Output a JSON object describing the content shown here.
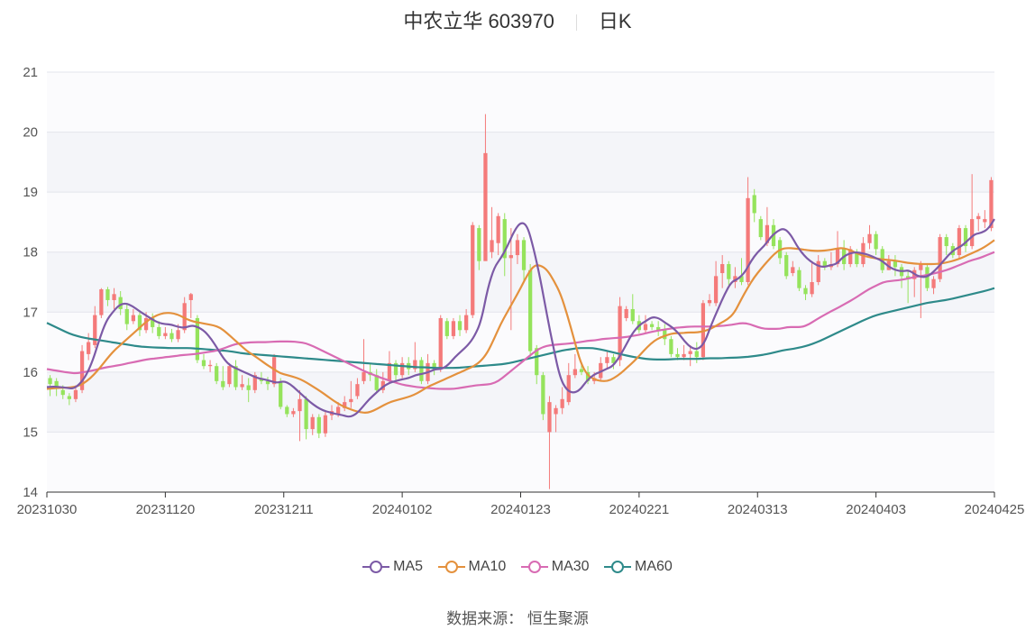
{
  "title": {
    "name": "中农立华 603970",
    "period": "日K"
  },
  "source": "数据来源： 恒生聚源",
  "colors": {
    "up": "#f47a7a",
    "down": "#95e35c",
    "MA5": "#7c5aa6",
    "MA10": "#e4913d",
    "MA30": "#d86bb3",
    "MA60": "#2e8a8a"
  },
  "chart_data": {
    "type": "candlestick",
    "ylim": [
      14,
      21
    ],
    "y_ticks": [
      "14",
      "15",
      "16",
      "17",
      "18",
      "19",
      "20",
      "21"
    ],
    "x_tick_labels": [
      "20231030",
      "20231120",
      "20231211",
      "20240102",
      "20240123",
      "20240221",
      "20240313",
      "20240403",
      "20240425"
    ],
    "legend": [
      "MA5",
      "MA10",
      "MA30",
      "MA60"
    ],
    "candles": [
      [
        15.9,
        15.8,
        15.95,
        15.6
      ],
      [
        15.85,
        15.72,
        15.9,
        15.6
      ],
      [
        15.7,
        15.62,
        15.78,
        15.55
      ],
      [
        15.6,
        15.55,
        15.65,
        15.45
      ],
      [
        15.55,
        15.7,
        15.78,
        15.5
      ],
      [
        15.7,
        16.35,
        16.45,
        15.65
      ],
      [
        16.3,
        16.5,
        16.65,
        16.2
      ],
      [
        16.45,
        16.95,
        17.1,
        16.4
      ],
      [
        16.95,
        17.38,
        17.4,
        16.9
      ],
      [
        17.38,
        17.2,
        17.42,
        17.1
      ],
      [
        17.2,
        17.3,
        17.4,
        17.05
      ],
      [
        17.25,
        17.05,
        17.35,
        16.95
      ],
      [
        17.05,
        16.8,
        17.15,
        16.7
      ],
      [
        16.85,
        16.95,
        17.05,
        16.8
      ],
      [
        16.95,
        16.7,
        17.0,
        16.6
      ],
      [
        16.7,
        16.9,
        17.0,
        16.65
      ],
      [
        16.9,
        16.75,
        16.98,
        16.65
      ],
      [
        16.75,
        16.6,
        16.85,
        16.55
      ],
      [
        16.6,
        16.65,
        16.75,
        16.55
      ],
      [
        16.65,
        16.55,
        16.72,
        16.5
      ],
      [
        16.55,
        16.7,
        16.8,
        16.5
      ],
      [
        16.7,
        17.15,
        17.25,
        16.65
      ],
      [
        17.2,
        17.3,
        17.32,
        16.9
      ],
      [
        16.9,
        16.2,
        16.95,
        16.15
      ],
      [
        16.2,
        16.1,
        16.3,
        16.05
      ],
      [
        16.1,
        16.12,
        16.2,
        16.0
      ],
      [
        16.1,
        15.85,
        16.15,
        15.8
      ],
      [
        15.85,
        15.75,
        16.1,
        15.7
      ],
      [
        15.8,
        16.1,
        16.15,
        15.75
      ],
      [
        16.1,
        15.75,
        16.2,
        15.7
      ],
      [
        15.75,
        15.8,
        15.95,
        15.7
      ],
      [
        15.78,
        15.7,
        15.9,
        15.5
      ],
      [
        15.7,
        15.95,
        16.0,
        15.65
      ],
      [
        15.9,
        15.85,
        16.0,
        15.8
      ],
      [
        15.85,
        15.8,
        15.92,
        15.7
      ],
      [
        15.8,
        16.25,
        16.3,
        15.75
      ],
      [
        15.85,
        15.42,
        15.9,
        15.38
      ],
      [
        15.42,
        15.3,
        15.45,
        15.25
      ],
      [
        15.3,
        15.35,
        15.4,
        15.25
      ],
      [
        15.35,
        15.55,
        15.7,
        14.85
      ],
      [
        15.55,
        15.05,
        15.6,
        14.88
      ],
      [
        15.05,
        15.25,
        15.3,
        14.95
      ],
      [
        15.25,
        14.98,
        15.3,
        14.9
      ],
      [
        14.98,
        15.28,
        15.35,
        14.92
      ],
      [
        15.28,
        15.35,
        15.45,
        15.2
      ],
      [
        15.3,
        15.42,
        15.5,
        15.25
      ],
      [
        15.4,
        15.5,
        15.6,
        15.35
      ],
      [
        15.5,
        15.55,
        15.85,
        15.4
      ],
      [
        15.6,
        15.8,
        15.9,
        15.55
      ],
      [
        15.85,
        16.0,
        16.55,
        15.8
      ],
      [
        16.0,
        15.95,
        16.15,
        15.85
      ],
      [
        15.95,
        15.7,
        16.05,
        15.65
      ],
      [
        15.7,
        15.85,
        16.0,
        15.65
      ],
      [
        15.85,
        16.15,
        16.35,
        15.8
      ],
      [
        16.15,
        15.95,
        16.2,
        15.85
      ],
      [
        15.95,
        16.15,
        16.25,
        15.9
      ],
      [
        16.15,
        16.05,
        16.25,
        15.95
      ],
      [
        16.05,
        16.2,
        16.5,
        16.0
      ],
      [
        16.2,
        15.85,
        16.25,
        15.8
      ],
      [
        15.85,
        16.15,
        16.3,
        15.8
      ],
      [
        16.15,
        16.05,
        16.2,
        15.95
      ],
      [
        16.05,
        16.9,
        16.95,
        16.0
      ],
      [
        16.85,
        16.6,
        16.9,
        16.55
      ],
      [
        16.6,
        16.85,
        16.9,
        16.55
      ],
      [
        16.85,
        16.7,
        16.95,
        16.6
      ],
      [
        16.7,
        16.95,
        17.05,
        16.65
      ],
      [
        16.95,
        18.45,
        18.5,
        16.9
      ],
      [
        18.4,
        17.85,
        18.45,
        17.7
      ],
      [
        17.85,
        19.65,
        20.3,
        18.0
      ],
      [
        18.0,
        18.2,
        18.75,
        17.9
      ],
      [
        18.15,
        18.6,
        18.65,
        17.95
      ],
      [
        18.55,
        17.9,
        18.65,
        17.6
      ],
      [
        17.9,
        17.95,
        18.4,
        16.7
      ],
      [
        17.95,
        18.2,
        18.3,
        17.8
      ],
      [
        18.2,
        17.7,
        18.25,
        17.5
      ],
      [
        17.7,
        16.35,
        17.8,
        16.25
      ],
      [
        16.4,
        15.95,
        16.45,
        15.8
      ],
      [
        15.95,
        15.3,
        16.0,
        15.2
      ],
      [
        15.0,
        15.5,
        15.6,
        14.05
      ],
      [
        15.3,
        15.4,
        15.45,
        15.0
      ],
      [
        15.4,
        15.55,
        15.75,
        15.3
      ],
      [
        15.5,
        15.95,
        16.15,
        15.45
      ],
      [
        15.95,
        16.05,
        16.3,
        15.9
      ],
      [
        16.05,
        16.0,
        16.15,
        15.95
      ],
      [
        16.0,
        15.85,
        16.1,
        15.8
      ],
      [
        15.85,
        15.9,
        16.0,
        15.8
      ],
      [
        15.9,
        16.15,
        16.25,
        15.85
      ],
      [
        16.15,
        16.25,
        16.35,
        16.05
      ],
      [
        16.25,
        16.15,
        16.3,
        16.05
      ],
      [
        16.2,
        17.1,
        17.25,
        16.1
      ],
      [
        16.9,
        17.05,
        17.1,
        16.85
      ],
      [
        17.05,
        16.85,
        17.3,
        16.8
      ],
      [
        16.85,
        16.7,
        16.95,
        16.65
      ],
      [
        16.7,
        16.8,
        16.95,
        16.65
      ],
      [
        16.8,
        16.75,
        16.85,
        16.7
      ],
      [
        16.75,
        16.7,
        16.85,
        16.6
      ],
      [
        16.7,
        16.55,
        16.8,
        16.45
      ],
      [
        16.55,
        16.3,
        16.6,
        16.25
      ],
      [
        16.3,
        16.25,
        16.4,
        16.2
      ],
      [
        16.25,
        16.3,
        16.45,
        16.2
      ],
      [
        16.3,
        16.35,
        16.45,
        16.1
      ],
      [
        16.35,
        16.25,
        16.5,
        16.15
      ],
      [
        16.25,
        17.15,
        17.2,
        16.2
      ],
      [
        17.15,
        17.2,
        17.3,
        17.1
      ],
      [
        17.15,
        17.6,
        17.85,
        17.1
      ],
      [
        17.65,
        17.8,
        17.95,
        17.4
      ],
      [
        17.8,
        17.55,
        17.85,
        17.45
      ],
      [
        17.5,
        17.6,
        17.75,
        17.4
      ],
      [
        17.6,
        17.5,
        17.9,
        17.45
      ],
      [
        17.5,
        18.9,
        19.25,
        17.45
      ],
      [
        18.95,
        18.65,
        19.05,
        18.5
      ],
      [
        18.55,
        18.25,
        18.6,
        18.2
      ],
      [
        18.15,
        18.45,
        18.75,
        18.1
      ],
      [
        18.45,
        18.1,
        18.55,
        18.05
      ],
      [
        18.2,
        17.9,
        18.25,
        17.8
      ],
      [
        17.95,
        17.6,
        18.0,
        17.55
      ],
      [
        17.65,
        17.75,
        17.85,
        17.6
      ],
      [
        17.7,
        17.4,
        17.75,
        17.35
      ],
      [
        17.4,
        17.3,
        17.45,
        17.2
      ],
      [
        17.3,
        17.5,
        17.85,
        17.25
      ],
      [
        17.5,
        17.85,
        17.95,
        17.45
      ],
      [
        17.85,
        17.75,
        17.9,
        17.7
      ],
      [
        17.75,
        17.8,
        18.0,
        17.7
      ],
      [
        17.8,
        18.05,
        18.35,
        17.75
      ],
      [
        18.05,
        17.8,
        18.2,
        17.7
      ],
      [
        17.8,
        18.05,
        18.1,
        17.75
      ],
      [
        18.0,
        17.8,
        18.05,
        17.75
      ],
      [
        17.8,
        18.15,
        18.25,
        17.75
      ],
      [
        18.15,
        18.3,
        18.45,
        18.05
      ],
      [
        18.3,
        18.05,
        18.35,
        17.95
      ],
      [
        18.05,
        17.7,
        18.1,
        17.65
      ],
      [
        17.7,
        17.85,
        17.95,
        17.7
      ],
      [
        17.85,
        17.75,
        17.95,
        17.6
      ],
      [
        17.75,
        17.6,
        17.8,
        17.4
      ],
      [
        17.6,
        17.55,
        17.7,
        17.15
      ],
      [
        17.55,
        17.7,
        17.75,
        17.25
      ],
      [
        17.7,
        17.8,
        17.85,
        16.9
      ],
      [
        17.75,
        17.4,
        17.8,
        17.35
      ],
      [
        17.4,
        17.55,
        17.6,
        17.3
      ],
      [
        17.55,
        18.25,
        18.3,
        17.5
      ],
      [
        18.25,
        18.1,
        18.3,
        17.95
      ],
      [
        18.1,
        17.95,
        18.15,
        17.9
      ],
      [
        17.95,
        18.4,
        18.45,
        17.9
      ],
      [
        18.4,
        18.1,
        18.45,
        18.0
      ],
      [
        18.1,
        18.55,
        19.3,
        18.05
      ],
      [
        18.55,
        18.6,
        18.65,
        18.35
      ],
      [
        18.5,
        18.55,
        18.7,
        18.4
      ],
      [
        18.4,
        19.2,
        19.25,
        18.35
      ]
    ],
    "MA5": [
      15.75,
      15.76,
      15.75,
      15.74,
      15.72,
      15.8,
      15.95,
      16.2,
      16.55,
      16.85,
      17.0,
      17.12,
      17.15,
      17.1,
      17.02,
      16.95,
      16.88,
      16.82,
      16.8,
      16.79,
      16.75,
      16.74,
      16.78,
      16.75,
      16.68,
      16.55,
      16.38,
      16.2,
      16.1,
      16.05,
      16.0,
      15.95,
      15.9,
      15.88,
      15.85,
      15.82,
      15.85,
      15.8,
      15.7,
      15.6,
      15.5,
      15.42,
      15.36,
      15.33,
      15.3,
      15.28,
      15.25,
      15.3,
      15.42,
      15.55,
      15.65,
      15.75,
      15.82,
      15.85,
      15.88,
      15.9,
      15.95,
      15.97,
      16.0,
      16.05,
      16.05,
      16.12,
      16.25,
      16.35,
      16.45,
      16.6,
      16.85,
      17.4,
      17.75,
      17.9,
      18.1,
      18.35,
      18.5,
      18.45,
      18.05,
      17.55,
      16.95,
      16.4,
      15.9,
      15.7,
      15.65,
      15.7,
      15.85,
      15.95,
      16.0,
      16.05,
      16.1,
      16.25,
      16.45,
      16.65,
      16.78,
      16.85,
      16.92,
      16.9,
      16.82,
      16.75,
      16.65,
      16.5,
      16.4,
      16.38,
      16.5,
      16.8,
      17.05,
      17.3,
      17.5,
      17.55,
      17.65,
      17.85,
      18.0,
      18.1,
      18.25,
      18.35,
      18.4,
      18.3,
      18.1,
      17.95,
      17.85,
      17.78,
      17.75,
      17.78,
      17.8,
      17.92,
      17.98,
      18.0,
      17.98,
      17.95,
      17.9,
      17.85,
      17.75,
      17.7,
      17.68,
      17.7,
      17.62,
      17.58,
      17.6,
      17.7,
      17.82,
      17.95,
      18.05,
      18.1,
      18.2,
      18.3,
      18.32,
      18.38,
      18.55
    ],
    "MA10": [
      15.72,
      15.73,
      15.74,
      15.74,
      15.75,
      15.78,
      15.85,
      15.95,
      16.08,
      16.22,
      16.35,
      16.45,
      16.55,
      16.65,
      16.75,
      16.85,
      16.92,
      16.97,
      16.99,
      16.98,
      16.94,
      16.88,
      16.84,
      16.82,
      16.8,
      16.78,
      16.74,
      16.65,
      16.55,
      16.45,
      16.35,
      16.28,
      16.2,
      16.12,
      16.05,
      15.98,
      15.95,
      15.92,
      15.88,
      15.82,
      15.75,
      15.68,
      15.6,
      15.52,
      15.45,
      15.4,
      15.36,
      15.33,
      15.32,
      15.36,
      15.42,
      15.48,
      15.52,
      15.55,
      15.58,
      15.62,
      15.68,
      15.75,
      15.8,
      15.85,
      15.9,
      15.95,
      16.0,
      16.05,
      16.1,
      16.18,
      16.32,
      16.55,
      16.8,
      17.0,
      17.2,
      17.4,
      17.62,
      17.78,
      17.78,
      17.7,
      17.52,
      17.3,
      16.95,
      16.55,
      16.15,
      15.95,
      15.88,
      15.85,
      15.85,
      15.9,
      15.98,
      16.08,
      16.18,
      16.3,
      16.42,
      16.52,
      16.58,
      16.62,
      16.65,
      16.65,
      16.66,
      16.66,
      16.67,
      16.7,
      16.75,
      16.82,
      16.88,
      16.98,
      17.2,
      17.4,
      17.58,
      17.72,
      17.85,
      17.97,
      18.05,
      18.07,
      18.06,
      18.05,
      18.03,
      18.02,
      18.02,
      18.03,
      18.05,
      18.07,
      18.05,
      18.0,
      17.95,
      17.92,
      17.9,
      17.88,
      17.87,
      17.86,
      17.84,
      17.82,
      17.81,
      17.8,
      17.8,
      17.8,
      17.81,
      17.83,
      17.86,
      17.9,
      17.95,
      18.0,
      18.05,
      18.12,
      18.2
    ],
    "MA30": [
      16.05,
      16.03,
      16.01,
      15.99,
      15.98,
      16.0,
      16.02,
      16.05,
      16.08,
      16.1,
      16.12,
      16.15,
      16.17,
      16.2,
      16.22,
      16.23,
      16.25,
      16.26,
      16.28,
      16.29,
      16.3,
      16.32,
      16.34,
      16.36,
      16.4,
      16.45,
      16.48,
      16.49,
      16.5,
      16.5,
      16.5,
      16.51,
      16.51,
      16.51,
      16.5,
      16.48,
      16.43,
      16.37,
      16.31,
      16.25,
      16.19,
      16.13,
      16.07,
      16.01,
      15.96,
      15.91,
      15.87,
      15.83,
      15.79,
      15.77,
      15.75,
      15.74,
      15.73,
      15.72,
      15.72,
      15.72,
      15.74,
      15.76,
      15.78,
      15.79,
      15.8,
      15.85,
      15.95,
      16.05,
      16.15,
      16.25,
      16.35,
      16.42,
      16.45,
      16.46,
      16.47,
      16.48,
      16.5,
      16.52,
      16.53,
      16.55,
      16.56,
      16.57,
      16.58,
      16.6,
      16.62,
      16.65,
      16.68,
      16.7,
      16.72,
      16.74,
      16.75,
      16.76,
      16.76,
      16.76,
      16.76,
      16.77,
      16.78,
      16.8,
      16.82,
      16.8,
      16.75,
      16.72,
      16.72,
      16.72,
      16.75,
      16.75,
      16.75,
      16.8,
      16.88,
      16.95,
      17.02,
      17.08,
      17.15,
      17.22,
      17.3,
      17.38,
      17.44,
      17.5,
      17.52,
      17.53,
      17.55,
      17.58,
      17.6,
      17.62,
      17.65,
      17.68,
      17.72,
      17.77,
      17.82,
      17.87,
      17.9,
      17.95,
      18.0
    ],
    "MA60": [
      16.82,
      16.76,
      16.7,
      16.64,
      16.6,
      16.57,
      16.55,
      16.53,
      16.51,
      16.49,
      16.47,
      16.45,
      16.43,
      16.42,
      16.41,
      16.41,
      16.4,
      16.4,
      16.4,
      16.4,
      16.39,
      16.38,
      16.37,
      16.36,
      16.35,
      16.33,
      16.31,
      16.3,
      16.29,
      16.28,
      16.27,
      16.26,
      16.25,
      16.24,
      16.23,
      16.22,
      16.21,
      16.2,
      16.19,
      16.18,
      16.17,
      16.16,
      16.15,
      16.14,
      16.13,
      16.12,
      16.11,
      16.1,
      16.09,
      16.08,
      16.08,
      16.07,
      16.07,
      16.07,
      16.07,
      16.08,
      16.09,
      16.1,
      16.11,
      16.12,
      16.13,
      16.15,
      16.18,
      16.21,
      16.24,
      16.27,
      16.3,
      16.33,
      16.36,
      16.38,
      16.4,
      16.4,
      16.4,
      16.38,
      16.35,
      16.32,
      16.29,
      16.26,
      16.24,
      16.22,
      16.21,
      16.21,
      16.21,
      16.22,
      16.22,
      16.22,
      16.22,
      16.23,
      16.23,
      16.23,
      16.24,
      16.24,
      16.25,
      16.26,
      16.28,
      16.3,
      16.33,
      16.36,
      16.38,
      16.4,
      16.43,
      16.47,
      16.52,
      16.58,
      16.64,
      16.7,
      16.76,
      16.82,
      16.88,
      16.93,
      16.97,
      17.0,
      17.03,
      17.06,
      17.09,
      17.12,
      17.15,
      17.17,
      17.19,
      17.21,
      17.24,
      17.27,
      17.3,
      17.33,
      17.36,
      17.4
    ]
  }
}
